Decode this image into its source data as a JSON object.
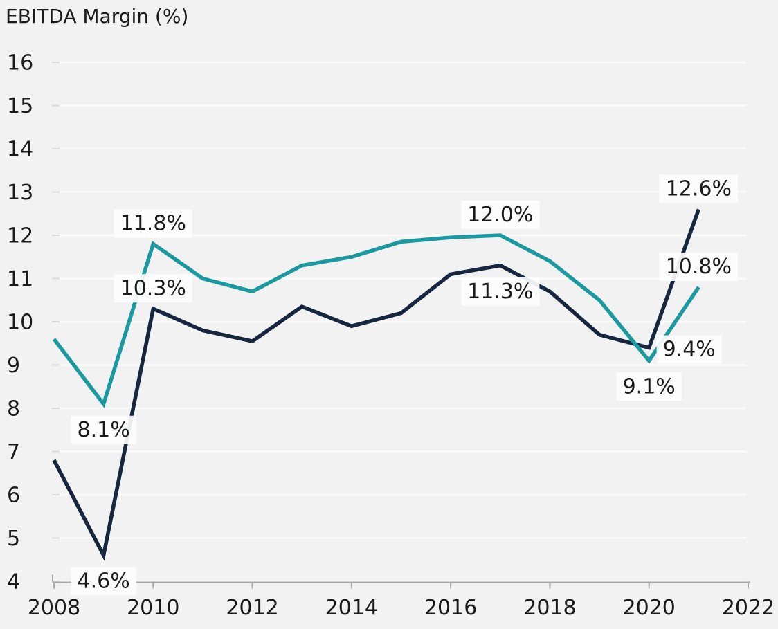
{
  "chart_data": {
    "type": "line",
    "title": "EBITDA Margin (%)",
    "x": [
      2008,
      2009,
      2010,
      2011,
      2012,
      2013,
      2014,
      2015,
      2016,
      2017,
      2018,
      2019,
      2020,
      2021
    ],
    "series": [
      {
        "name": "navy-series",
        "color": "#16263e",
        "values": [
          6.8,
          4.6,
          10.3,
          9.8,
          9.55,
          10.35,
          9.9,
          10.2,
          11.1,
          11.3,
          10.7,
          9.7,
          9.4,
          12.6
        ]
      },
      {
        "name": "teal-series",
        "color": "#1b99a1",
        "values": [
          9.6,
          8.1,
          11.8,
          11.0,
          10.7,
          11.3,
          11.5,
          11.85,
          11.95,
          12.0,
          11.4,
          10.5,
          9.1,
          10.8
        ]
      }
    ],
    "annotations": [
      {
        "series": "teal-series",
        "year": 2009,
        "text": "8.1%",
        "placement": "below"
      },
      {
        "series": "navy-series",
        "year": 2009,
        "text": "4.6%",
        "placement": "below"
      },
      {
        "series": "teal-series",
        "year": 2010,
        "text": "11.8%",
        "placement": "above"
      },
      {
        "series": "navy-series",
        "year": 2010,
        "text": "10.3%",
        "placement": "above"
      },
      {
        "series": "teal-series",
        "year": 2017,
        "text": "12.0%",
        "placement": "above"
      },
      {
        "series": "navy-series",
        "year": 2017,
        "text": "11.3%",
        "placement": "below"
      },
      {
        "series": "teal-series",
        "year": 2020,
        "text": "9.1%",
        "placement": "below"
      },
      {
        "series": "navy-series",
        "year": 2020,
        "text": "9.4%",
        "placement": "right"
      },
      {
        "series": "teal-series",
        "year": 2021,
        "text": "10.8%",
        "placement": "above"
      },
      {
        "series": "navy-series",
        "year": 2021,
        "text": "12.6%",
        "placement": "above"
      }
    ],
    "ylim": [
      4,
      16
    ],
    "yticks": [
      4,
      5,
      6,
      7,
      8,
      9,
      10,
      11,
      12,
      13,
      14,
      15,
      16
    ],
    "x_range": [
      2008,
      2022
    ],
    "xticks": [
      2008,
      2010,
      2012,
      2014,
      2016,
      2018,
      2020,
      2022
    ],
    "grid": true,
    "legend": "none",
    "colors": {
      "background": "#f2f2f2",
      "gridline": "#fbfbfb",
      "axis": "#a8a8a8",
      "y_tick_stub": "#d9d9d9",
      "text": "#1a1a1a",
      "label_box": "#fdfdfd"
    }
  }
}
